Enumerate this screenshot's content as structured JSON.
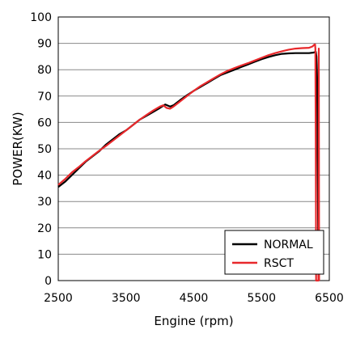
{
  "chart_data": {
    "type": "line",
    "xlabel": "Engine (rpm)",
    "ylabel": "POWER(KW)",
    "xlim": [
      2500,
      6500
    ],
    "ylim": [
      0,
      100
    ],
    "x_ticks": [
      2500,
      3500,
      4500,
      5500,
      6500
    ],
    "y_ticks": [
      0,
      10,
      20,
      30,
      40,
      50,
      60,
      70,
      80,
      90,
      100
    ],
    "grid": "horizontal",
    "legend_position": "bottom-right",
    "series": [
      {
        "name": "NORMAL",
        "color": "#000000",
        "points": [
          [
            2500,
            35.5
          ],
          [
            2600,
            37.5
          ],
          [
            2700,
            40.0
          ],
          [
            2800,
            42.5
          ],
          [
            2900,
            45.0
          ],
          [
            3000,
            47.0
          ],
          [
            3100,
            49.0
          ],
          [
            3200,
            51.5
          ],
          [
            3300,
            53.5
          ],
          [
            3400,
            55.5
          ],
          [
            3500,
            57.0
          ],
          [
            3600,
            59.0
          ],
          [
            3700,
            61.0
          ],
          [
            3800,
            62.5
          ],
          [
            3900,
            64.0
          ],
          [
            4000,
            65.5
          ],
          [
            4080,
            66.8
          ],
          [
            4150,
            66.0
          ],
          [
            4200,
            66.5
          ],
          [
            4300,
            68.5
          ],
          [
            4400,
            70.3
          ],
          [
            4500,
            72.0
          ],
          [
            4600,
            73.5
          ],
          [
            4700,
            75.0
          ],
          [
            4800,
            76.5
          ],
          [
            4900,
            78.0
          ],
          [
            5000,
            79.0
          ],
          [
            5100,
            80.0
          ],
          [
            5200,
            81.0
          ],
          [
            5300,
            82.0
          ],
          [
            5400,
            83.0
          ],
          [
            5500,
            84.0
          ],
          [
            5600,
            84.8
          ],
          [
            5700,
            85.5
          ],
          [
            5800,
            86.0
          ],
          [
            5900,
            86.2
          ],
          [
            6000,
            86.3
          ],
          [
            6100,
            86.3
          ],
          [
            6200,
            86.3
          ],
          [
            6270,
            86.5
          ],
          [
            6300,
            86.8
          ],
          [
            6310,
            85.0
          ],
          [
            6320,
            77.0
          ],
          [
            6330,
            40.0
          ],
          [
            6340,
            0
          ]
        ]
      },
      {
        "name": "RSCT",
        "color": "#e8282b",
        "points": [
          [
            2500,
            36.3
          ],
          [
            2600,
            38.5
          ],
          [
            2700,
            41.0
          ],
          [
            2800,
            43.0
          ],
          [
            2900,
            45.2
          ],
          [
            3000,
            47.2
          ],
          [
            3100,
            49.2
          ],
          [
            3200,
            51.0
          ],
          [
            3300,
            53.0
          ],
          [
            3400,
            55.0
          ],
          [
            3500,
            57.0
          ],
          [
            3600,
            59.0
          ],
          [
            3700,
            61.0
          ],
          [
            3800,
            62.8
          ],
          [
            3900,
            64.5
          ],
          [
            4000,
            66.0
          ],
          [
            4050,
            66.5
          ],
          [
            4100,
            65.5
          ],
          [
            4150,
            65.2
          ],
          [
            4200,
            66.0
          ],
          [
            4300,
            68.0
          ],
          [
            4400,
            70.0
          ],
          [
            4500,
            72.0
          ],
          [
            4600,
            73.8
          ],
          [
            4700,
            75.3
          ],
          [
            4800,
            76.8
          ],
          [
            4900,
            78.3
          ],
          [
            5000,
            79.6
          ],
          [
            5100,
            80.6
          ],
          [
            5200,
            81.6
          ],
          [
            5300,
            82.5
          ],
          [
            5400,
            83.5
          ],
          [
            5500,
            84.5
          ],
          [
            5600,
            85.5
          ],
          [
            5700,
            86.3
          ],
          [
            5800,
            87.0
          ],
          [
            5900,
            87.6
          ],
          [
            6000,
            88.0
          ],
          [
            6100,
            88.2
          ],
          [
            6200,
            88.3
          ],
          [
            6250,
            88.8
          ],
          [
            6280,
            89.5
          ],
          [
            6290,
            89.6
          ],
          [
            6295,
            88.0
          ],
          [
            6300,
            50.0
          ],
          [
            6305,
            0
          ],
          [
            6340,
            0
          ],
          [
            6345,
            88.0
          ],
          [
            6350,
            0
          ]
        ]
      }
    ]
  }
}
